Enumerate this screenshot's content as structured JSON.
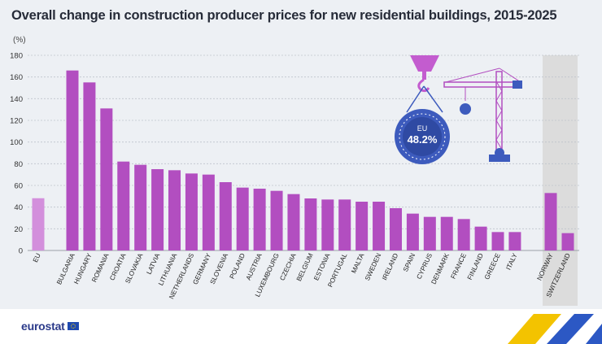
{
  "title": "Overall change in construction producer prices for new residential buildings, 2015-2025",
  "unit_label": "(%)",
  "colors": {
    "bar": "#b24ec0",
    "bar_eu": "#d38fdc",
    "non_eu_band": "#dcdcdc",
    "badge": "#3d5bbd",
    "crane": "#b24ec0",
    "crane_accent": "#3d5bbd"
  },
  "badge": {
    "label": "EU",
    "value": "48.2%"
  },
  "logo": {
    "text": "eurostat"
  },
  "chart_data": {
    "type": "bar",
    "title": "Overall change in construction producer prices for new residential buildings, 2015-2025",
    "ylabel": "(%)",
    "ylim": [
      0,
      180
    ],
    "yticks": [
      0,
      20,
      40,
      60,
      80,
      100,
      120,
      140,
      160,
      180
    ],
    "grid": true,
    "categories": [
      "EU",
      "BULGARIA",
      "HUNGARY",
      "ROMANIA",
      "CROATIA",
      "SLOVAKIA",
      "LATVIA",
      "LITHUANIA",
      "NETHERLANDS",
      "GERMANY",
      "SLOVENIA",
      "POLAND",
      "AUSTRIA",
      "LUXEMBOURG",
      "CZECHIA",
      "BELGIUM",
      "ESTONIA",
      "PORTUGAL",
      "MALTA",
      "SWEDEN",
      "IRELAND",
      "SPAIN",
      "CYPRUS",
      "DENMARK",
      "FRANCE",
      "FINLAND",
      "GREECE",
      "ITALY",
      "NORWAY",
      "SWITZERLAND"
    ],
    "values": [
      48.2,
      166,
      155,
      131,
      82,
      79,
      75,
      74,
      71,
      70,
      63,
      58,
      57,
      55,
      52,
      48,
      47,
      47,
      45,
      45,
      39,
      34,
      31,
      31,
      29,
      22,
      17,
      17,
      53,
      16
    ]
  }
}
